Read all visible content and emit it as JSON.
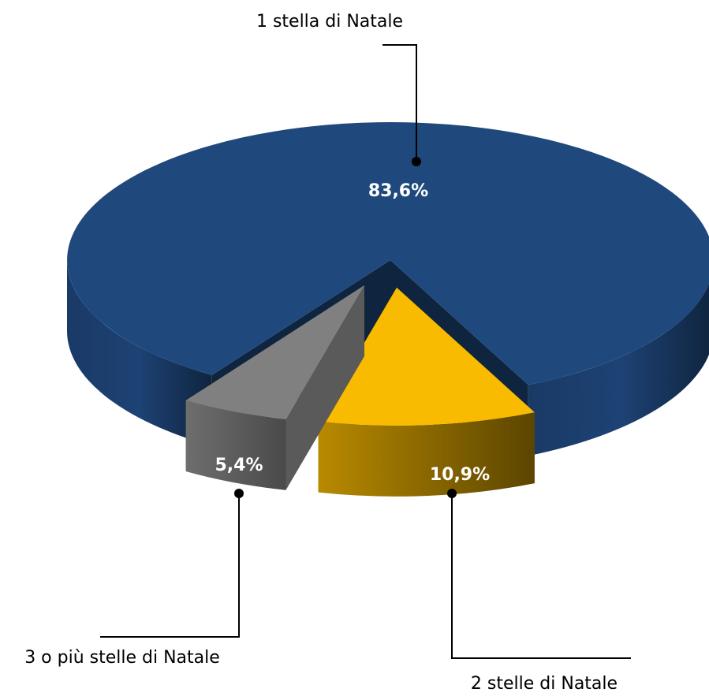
{
  "chart_data": {
    "type": "pie",
    "categories": [
      "1 stella di Natale",
      "2 stelle di Natale",
      "3 o più stelle di Natale"
    ],
    "values": [
      83.6,
      10.9,
      5.4
    ],
    "value_labels": [
      "83,6%",
      "10,9%",
      "5,4%"
    ],
    "colors": [
      "#1f497d",
      "#f9bb00",
      "#808080"
    ],
    "legend": false
  }
}
